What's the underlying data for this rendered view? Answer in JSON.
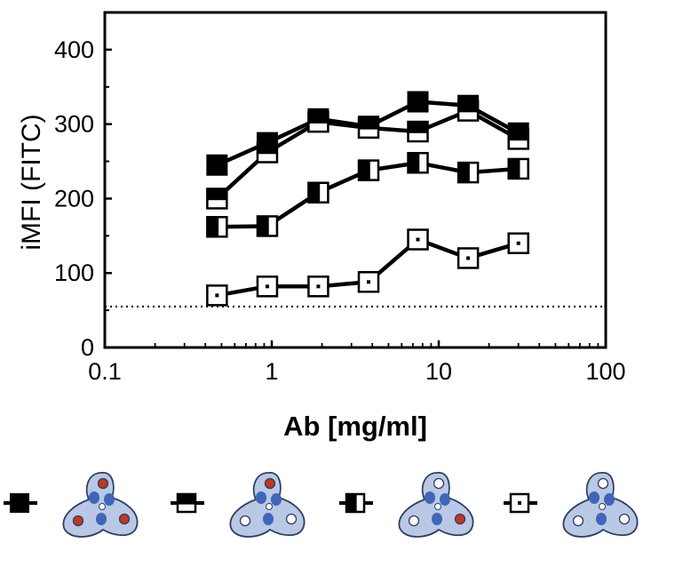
{
  "chart_data": {
    "type": "line",
    "title": "",
    "xlabel": "Ab [mg/ml]",
    "ylabel": "iMFI (FITC)",
    "xscale": "log",
    "xlim": [
      0.1,
      100
    ],
    "ylim": [
      0,
      450
    ],
    "x_ticks": [
      0.1,
      1,
      10,
      100
    ],
    "x_tick_labels": [
      "0.1",
      "1",
      "10",
      "100"
    ],
    "y_ticks": [
      0,
      100,
      200,
      300,
      400
    ],
    "y_tick_labels": [
      "0",
      "100",
      "200",
      "300",
      "400"
    ],
    "grid": false,
    "legend_placement": "bottom",
    "reference_line": {
      "y": 55,
      "style": "dotted"
    },
    "series": [
      {
        "marker": "filled-square",
        "x": [
          0.47,
          0.94,
          1.9,
          3.8,
          7.5,
          15,
          30
        ],
        "y": [
          245,
          275,
          307,
          297,
          330,
          325,
          288
        ]
      },
      {
        "marker": "top-filled-square",
        "x": [
          0.47,
          0.94,
          1.9,
          3.8,
          7.5,
          15,
          30
        ],
        "y": [
          200,
          262,
          303,
          295,
          290,
          318,
          280
        ]
      },
      {
        "marker": "left-filled-square",
        "x": [
          0.47,
          0.94,
          1.9,
          3.8,
          7.5,
          15,
          30
        ],
        "y": [
          162,
          163,
          208,
          238,
          248,
          235,
          240
        ]
      },
      {
        "marker": "open-square-dot",
        "x": [
          0.47,
          0.94,
          1.9,
          3.8,
          7.5,
          15,
          30
        ],
        "y": [
          70,
          82,
          82,
          88,
          145,
          120,
          140
        ]
      }
    ],
    "legend_items": [
      {
        "marker": "filled-square",
        "dots": [
          "red",
          "red",
          "red"
        ]
      },
      {
        "marker": "top-filled-square",
        "dots": [
          "red",
          "white",
          "white"
        ]
      },
      {
        "marker": "left-filled-square",
        "dots": [
          "white",
          "white",
          "red"
        ]
      },
      {
        "marker": "open-square-dot",
        "dots": [
          "white",
          "white",
          "white"
        ]
      }
    ],
    "colors": {
      "line": "#000000",
      "blob_fill": "#b9c8e4",
      "blob_stroke": "#2c3e63",
      "lobe_blue": "#3f66b8",
      "dot_red": "#c4361d",
      "dot_white": "#ffffff"
    }
  }
}
